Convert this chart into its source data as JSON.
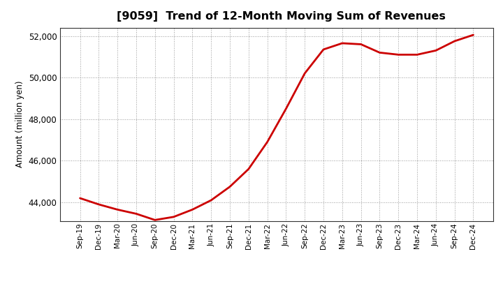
{
  "title": "[9059]  Trend of 12-Month Moving Sum of Revenues",
  "ylabel": "Amount (million yen)",
  "line_color": "#cc0000",
  "line_width": 2.0,
  "background_color": "#ffffff",
  "plot_bg_color": "#ffffff",
  "grid_color": "#999999",
  "ylim": [
    43100,
    52400
  ],
  "yticks": [
    44000,
    46000,
    48000,
    50000,
    52000
  ],
  "x_labels": [
    "Sep-19",
    "Dec-19",
    "Mar-20",
    "Jun-20",
    "Sep-20",
    "Dec-20",
    "Mar-21",
    "Jun-21",
    "Sep-21",
    "Dec-21",
    "Mar-22",
    "Jun-22",
    "Sep-22",
    "Dec-22",
    "Mar-23",
    "Jun-23",
    "Sep-23",
    "Dec-23",
    "Mar-24",
    "Jun-24",
    "Sep-24",
    "Dec-24"
  ],
  "values": [
    44200,
    43900,
    43650,
    43450,
    43150,
    43300,
    43650,
    44100,
    44750,
    45600,
    46900,
    48500,
    50200,
    51350,
    51650,
    51600,
    51200,
    51100,
    51100,
    51300,
    51750,
    52050
  ]
}
